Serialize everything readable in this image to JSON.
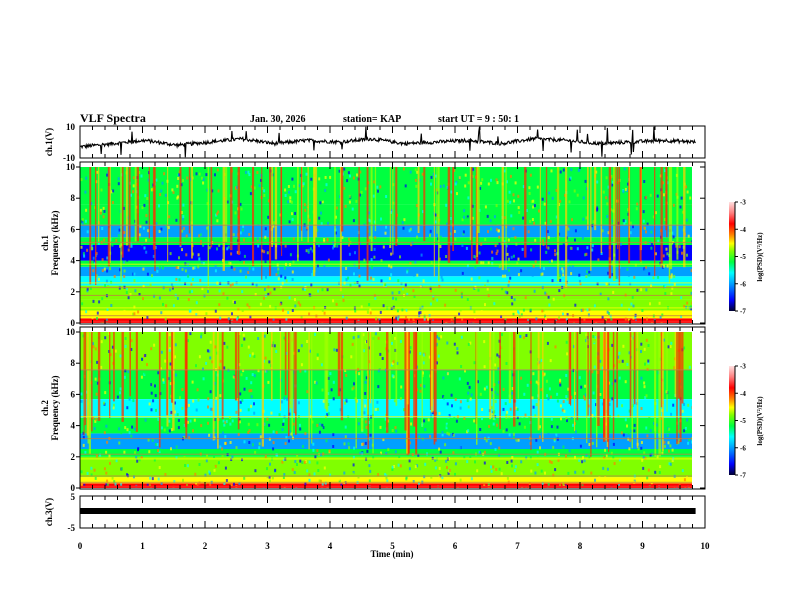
{
  "header": {
    "title": "VLF Spectra",
    "date": "Jan. 30, 2026",
    "station": "station= KAP",
    "start": "start  UT =   9 : 50: 1"
  },
  "chart_data": [
    {
      "type": "line",
      "name": "ch1-waveform",
      "ylabel": "ch.1(V)",
      "ylim": [
        -10,
        10
      ],
      "yticks": [
        "10",
        "-10"
      ],
      "xlim": [
        0,
        10
      ],
      "data_end_min": 9.85,
      "approx_level_V": [
        -3,
        -1,
        1,
        -2,
        0,
        2,
        -1,
        1,
        0,
        2,
        -1,
        0,
        1,
        -1,
        2,
        1,
        -1,
        0,
        1,
        0
      ]
    },
    {
      "type": "heatmap",
      "name": "ch1-spectrogram",
      "ylabel_line1": "ch.1",
      "ylabel_line2": "Frequency  (kHz)",
      "ylim": [
        0,
        10
      ],
      "yticks": [
        "0",
        "2",
        "4",
        "6",
        "8",
        "10"
      ],
      "xlim": [
        0,
        10
      ],
      "data_end_min": 9.85,
      "colorbar": {
        "label": "log(PSD)(V²/Hz)",
        "range": [
          -7,
          -3
        ],
        "ticks": [
          "-3",
          "-4",
          "-5",
          "-6",
          "-7"
        ]
      }
    },
    {
      "type": "heatmap",
      "name": "ch2-spectrogram",
      "ylabel_line1": "ch.2",
      "ylabel_line2": "Frequency  (kHz)",
      "ylim": [
        0,
        10
      ],
      "yticks": [
        "0",
        "2",
        "4",
        "6",
        "8",
        "10"
      ],
      "xlim": [
        0,
        10
      ],
      "data_end_min": 9.85,
      "colorbar": {
        "label": "log(PSD)(V²/Hz)",
        "range": [
          -7,
          -3
        ],
        "ticks": [
          "-3",
          "-4",
          "-5",
          "-6",
          "-7"
        ]
      }
    },
    {
      "type": "line",
      "name": "ch3-waveform",
      "ylabel": "ch.3(V)",
      "ylim": [
        -5,
        5
      ],
      "yticks": [
        "5",
        "-5"
      ],
      "xlim": [
        0,
        10
      ],
      "data_end_min": 9.85,
      "approx_level_V": 0.8
    }
  ],
  "xaxis": {
    "label": "Time  (min)",
    "ticks": [
      "0",
      "1",
      "2",
      "3",
      "4",
      "5",
      "6",
      "7",
      "8",
      "9",
      "10"
    ]
  },
  "colors": {
    "axis": "#000000",
    "colormap": [
      "#000030",
      "#0000ff",
      "#00a0ff",
      "#00ffff",
      "#00ff40",
      "#80ff00",
      "#ffff00",
      "#ff8000",
      "#ff0000",
      "#ff8080",
      "#ffe0e0"
    ]
  }
}
